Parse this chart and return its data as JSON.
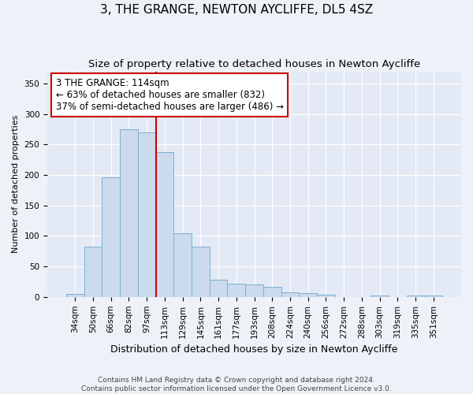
{
  "title": "3, THE GRANGE, NEWTON AYCLIFFE, DL5 4SZ",
  "subtitle": "Size of property relative to detached houses in Newton Aycliffe",
  "xlabel": "Distribution of detached houses by size in Newton Aycliffe",
  "ylabel": "Number of detached properties",
  "categories": [
    "34sqm",
    "50sqm",
    "66sqm",
    "82sqm",
    "97sqm",
    "113sqm",
    "129sqm",
    "145sqm",
    "161sqm",
    "177sqm",
    "193sqm",
    "208sqm",
    "224sqm",
    "240sqm",
    "256sqm",
    "272sqm",
    "288sqm",
    "303sqm",
    "319sqm",
    "335sqm",
    "351sqm"
  ],
  "values": [
    5,
    83,
    196,
    275,
    270,
    238,
    105,
    83,
    28,
    22,
    20,
    16,
    7,
    6,
    3,
    0,
    0,
    2,
    0,
    2,
    2
  ],
  "bar_color": "#ccdaed",
  "bar_edge_color": "#7aafd4",
  "vline_color": "#cc0000",
  "vline_index": 5,
  "annotation_text": "3 THE GRANGE: 114sqm\n← 63% of detached houses are smaller (832)\n37% of semi-detached houses are larger (486) →",
  "annotation_box_color": "#ffffff",
  "annotation_box_edge": "#cc0000",
  "annotation_fontsize": 8.5,
  "title_fontsize": 11,
  "subtitle_fontsize": 9.5,
  "xlabel_fontsize": 9,
  "ylabel_fontsize": 8,
  "tick_fontsize": 7.5,
  "footer_line1": "Contains HM Land Registry data © Crown copyright and database right 2024.",
  "footer_line2": "Contains public sector information licensed under the Open Government Licence v3.0.",
  "ylim": [
    0,
    370
  ],
  "yticks": [
    0,
    50,
    100,
    150,
    200,
    250,
    300,
    350
  ],
  "background_color": "#eef2f8",
  "plot_bg_color": "#e4eaf5",
  "grid_color": "#ffffff"
}
